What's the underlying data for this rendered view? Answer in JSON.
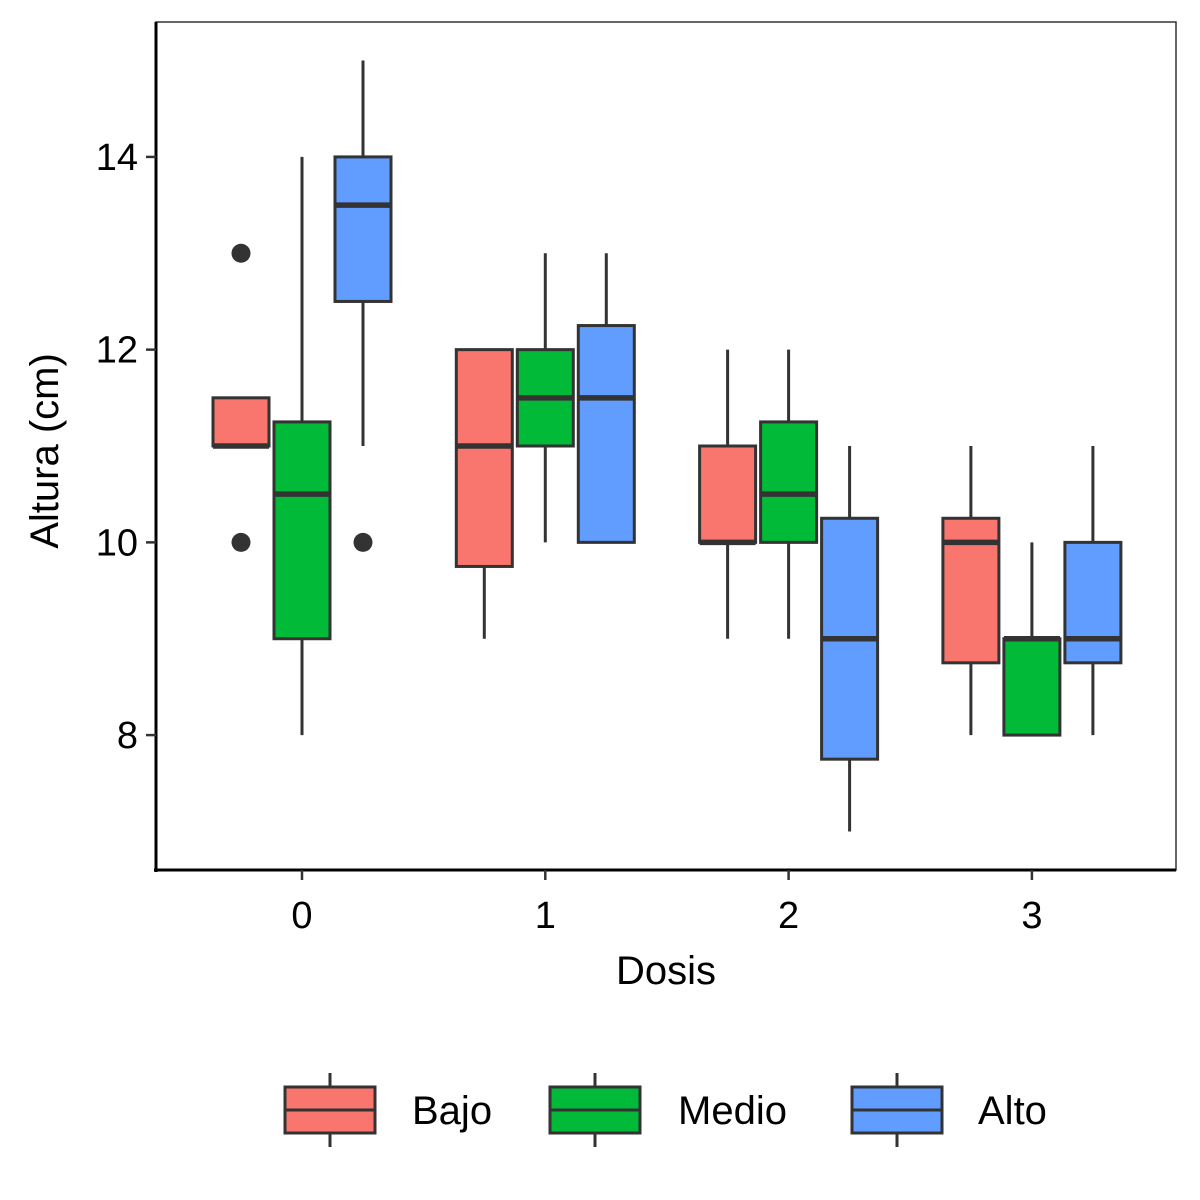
{
  "chart_data": {
    "type": "boxplot",
    "title": "",
    "xlabel": "Dosis",
    "ylabel": "Altura (cm)",
    "categories": [
      "0",
      "1",
      "2",
      "3"
    ],
    "ylim": [
      6.6,
      15.4
    ],
    "yticks": [
      8,
      10,
      12,
      14
    ],
    "grid": false,
    "legend_position": "bottom",
    "series": [
      {
        "name": "Bajo",
        "color": "#F8766D",
        "boxes": [
          {
            "category": "0",
            "whisker_low": 11,
            "q1": 11,
            "median": 11,
            "q3": 11.5,
            "whisker_high": 11.5,
            "outliers": [
              10,
              13
            ]
          },
          {
            "category": "1",
            "whisker_low": 9,
            "q1": 9.75,
            "median": 11,
            "q3": 12,
            "whisker_high": 12,
            "outliers": []
          },
          {
            "category": "2",
            "whisker_low": 9,
            "q1": 10,
            "median": 10,
            "q3": 11,
            "whisker_high": 12,
            "outliers": []
          },
          {
            "category": "3",
            "whisker_low": 8,
            "q1": 8.75,
            "median": 10,
            "q3": 10.25,
            "whisker_high": 11,
            "outliers": []
          }
        ]
      },
      {
        "name": "Medio",
        "color": "#00BA38",
        "boxes": [
          {
            "category": "0",
            "whisker_low": 8,
            "q1": 9,
            "median": 10.5,
            "q3": 11.25,
            "whisker_high": 14,
            "outliers": []
          },
          {
            "category": "1",
            "whisker_low": 10,
            "q1": 11,
            "median": 11.5,
            "q3": 12,
            "whisker_high": 13,
            "outliers": []
          },
          {
            "category": "2",
            "whisker_low": 9,
            "q1": 10,
            "median": 10.5,
            "q3": 11.25,
            "whisker_high": 12,
            "outliers": []
          },
          {
            "category": "3",
            "whisker_low": 8,
            "q1": 8,
            "median": 9,
            "q3": 9,
            "whisker_high": 10,
            "outliers": []
          }
        ]
      },
      {
        "name": "Alto",
        "color": "#619CFF",
        "boxes": [
          {
            "category": "0",
            "whisker_low": 11,
            "q1": 12.5,
            "median": 13.5,
            "q3": 14,
            "whisker_high": 15,
            "outliers": [
              10
            ]
          },
          {
            "category": "1",
            "whisker_low": 10,
            "q1": 10,
            "median": 11.5,
            "q3": 12.25,
            "whisker_high": 13,
            "outliers": []
          },
          {
            "category": "2",
            "whisker_low": 7,
            "q1": 7.75,
            "median": 9,
            "q3": 10.25,
            "whisker_high": 11,
            "outliers": []
          },
          {
            "category": "3",
            "whisker_low": 8,
            "q1": 8.75,
            "median": 9,
            "q3": 10,
            "whisker_high": 11,
            "outliers": []
          }
        ]
      }
    ]
  },
  "style": {
    "line_color": "#333333",
    "axis_color": "#000000"
  }
}
